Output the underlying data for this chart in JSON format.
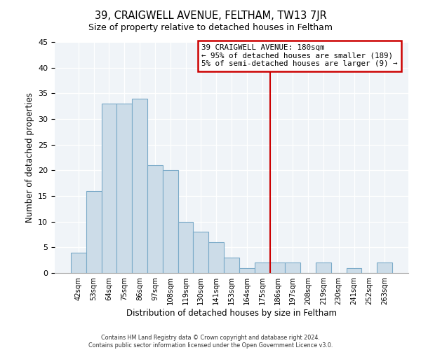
{
  "title": "39, CRAIGWELL AVENUE, FELTHAM, TW13 7JR",
  "subtitle": "Size of property relative to detached houses in Feltham",
  "xlabel": "Distribution of detached houses by size in Feltham",
  "ylabel": "Number of detached properties",
  "bar_labels": [
    "42sqm",
    "53sqm",
    "64sqm",
    "75sqm",
    "86sqm",
    "97sqm",
    "108sqm",
    "119sqm",
    "130sqm",
    "141sqm",
    "153sqm",
    "164sqm",
    "175sqm",
    "186sqm",
    "197sqm",
    "208sqm",
    "219sqm",
    "230sqm",
    "241sqm",
    "252sqm",
    "263sqm"
  ],
  "bar_values": [
    4,
    16,
    33,
    33,
    34,
    21,
    20,
    10,
    8,
    6,
    3,
    1,
    2,
    2,
    2,
    0,
    2,
    0,
    1,
    0,
    2
  ],
  "bar_color": "#ccdce8",
  "bar_edge_color": "#7aaac8",
  "vline_index": 12.5,
  "vline_color": "#cc0000",
  "annotation_title": "39 CRAIGWELL AVENUE: 180sqm",
  "annotation_line1": "← 95% of detached houses are smaller (189)",
  "annotation_line2": "5% of semi-detached houses are larger (9) →",
  "ylim": [
    0,
    45
  ],
  "yticks": [
    0,
    5,
    10,
    15,
    20,
    25,
    30,
    35,
    40,
    45
  ],
  "footer1": "Contains HM Land Registry data © Crown copyright and database right 2024.",
  "footer2": "Contains public sector information licensed under the Open Government Licence v3.0."
}
